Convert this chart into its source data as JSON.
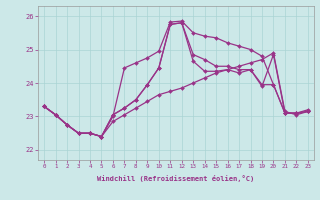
{
  "xlabel": "Windchill (Refroidissement éolien,°C)",
  "bg_color": "#cce8e8",
  "line_color": "#993388",
  "xlim": [
    -0.5,
    23.5
  ],
  "ylim": [
    21.7,
    26.3
  ],
  "yticks": [
    22,
    23,
    24,
    25,
    26
  ],
  "xticks": [
    0,
    1,
    2,
    3,
    4,
    5,
    6,
    7,
    8,
    9,
    10,
    11,
    12,
    13,
    14,
    15,
    16,
    17,
    18,
    19,
    20,
    21,
    22,
    23
  ],
  "series": [
    [
      23.3,
      23.05,
      22.75,
      22.5,
      22.5,
      22.4,
      22.85,
      23.05,
      23.25,
      23.45,
      23.65,
      23.75,
      23.85,
      24.0,
      24.15,
      24.3,
      24.4,
      24.5,
      24.6,
      24.7,
      24.9,
      23.15,
      23.05,
      23.15
    ],
    [
      23.3,
      23.05,
      22.75,
      22.5,
      22.5,
      22.4,
      23.05,
      23.25,
      23.5,
      23.95,
      24.45,
      25.75,
      25.8,
      24.85,
      24.7,
      24.5,
      24.5,
      24.4,
      24.4,
      23.95,
      23.95,
      23.1,
      23.1,
      23.15
    ],
    [
      23.3,
      23.05,
      22.75,
      22.5,
      22.5,
      22.4,
      23.0,
      24.45,
      24.6,
      24.75,
      24.95,
      25.82,
      25.85,
      25.5,
      25.4,
      25.35,
      25.2,
      25.1,
      25.0,
      24.8,
      23.95,
      23.1,
      23.1,
      23.15
    ],
    [
      23.3,
      23.05,
      22.75,
      22.5,
      22.5,
      22.4,
      23.05,
      23.25,
      23.5,
      23.95,
      24.45,
      25.75,
      25.8,
      24.65,
      24.35,
      24.35,
      24.4,
      24.3,
      24.4,
      23.9,
      24.85,
      23.1,
      23.1,
      23.2
    ]
  ]
}
